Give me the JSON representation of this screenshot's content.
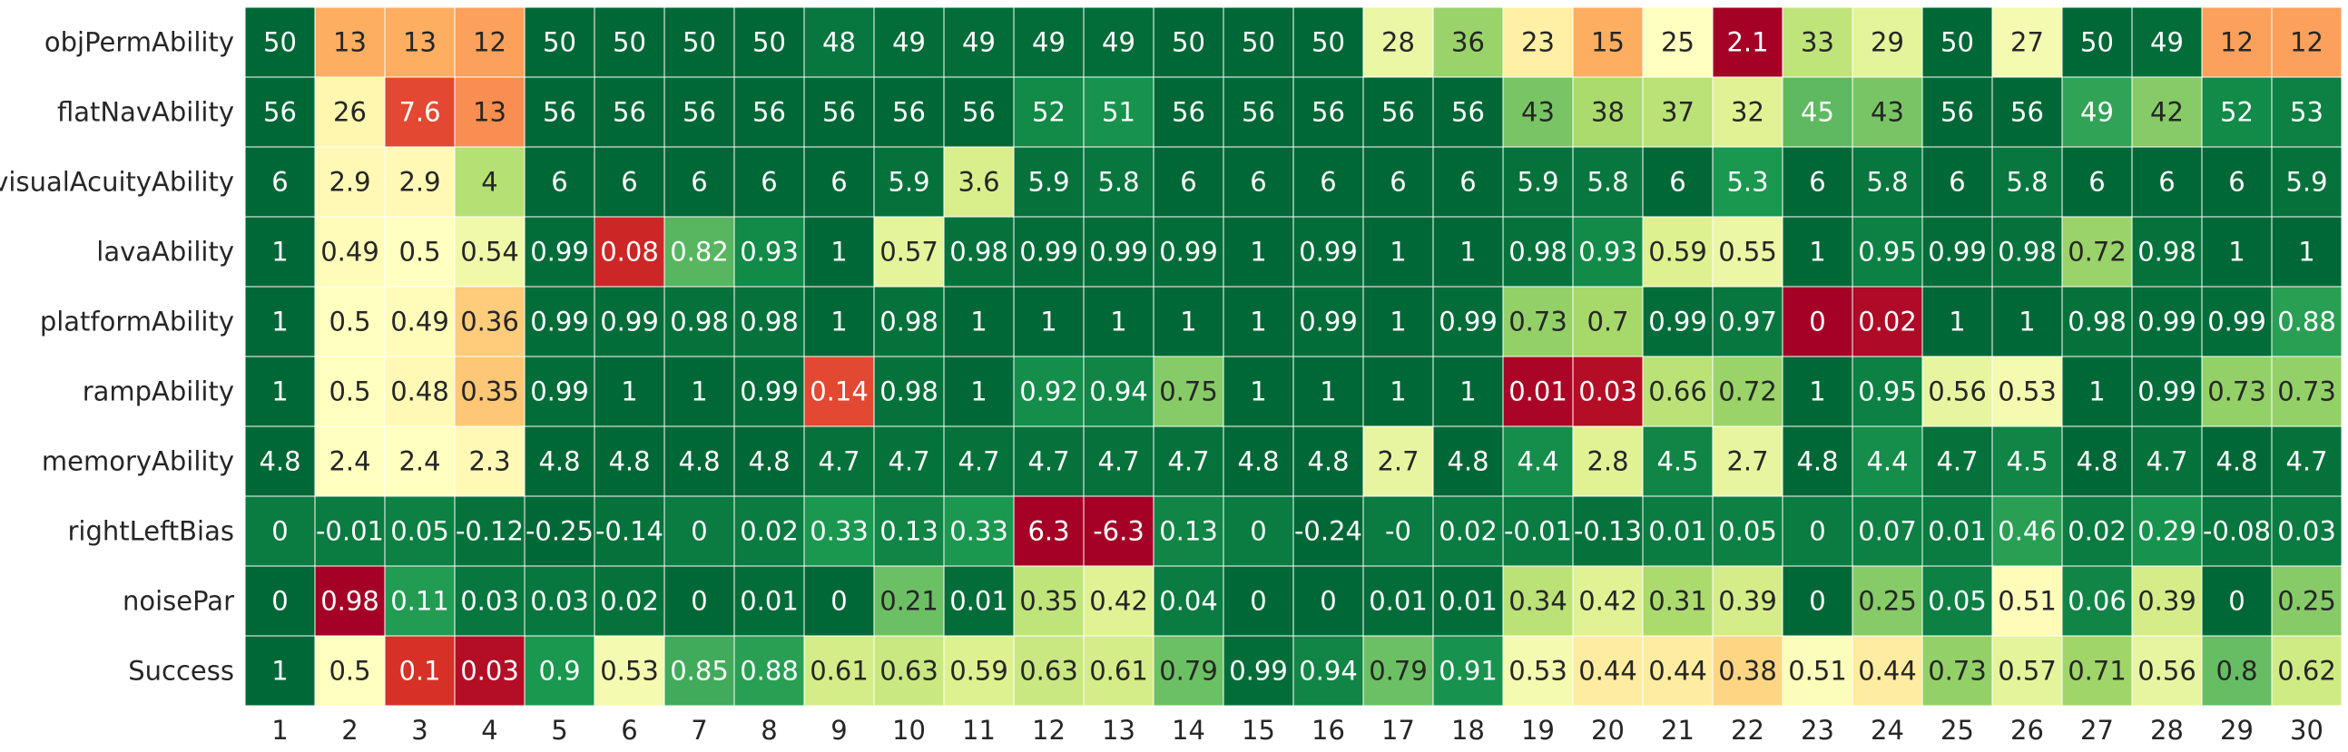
{
  "chart_data": {
    "type": "heatmap",
    "title": "",
    "xlabel": "",
    "ylabel": "",
    "colormap": "RdYlGn",
    "legend": "none",
    "grid": false,
    "rows": [
      "objPermAbility",
      "flatNavAbility",
      "visualAcuityAbility",
      "lavaAbility",
      "platformAbility",
      "rampAbility",
      "memoryAbility",
      "rightLeftBias",
      "noisePar",
      "Success"
    ],
    "columns": [
      "1",
      "2",
      "3",
      "4",
      "5",
      "6",
      "7",
      "8",
      "9",
      "10",
      "11",
      "12",
      "13",
      "14",
      "15",
      "16",
      "17",
      "18",
      "19",
      "20",
      "21",
      "22",
      "23",
      "24",
      "25",
      "26",
      "27",
      "28",
      "29",
      "30"
    ],
    "values": [
      [
        "50",
        "13",
        "13",
        "12",
        "50",
        "50",
        "50",
        "50",
        "48",
        "49",
        "49",
        "49",
        "49",
        "50",
        "50",
        "50",
        "28",
        "36",
        "23",
        "15",
        "25",
        "2.1",
        "33",
        "29",
        "50",
        "27",
        "50",
        "49",
        "12",
        "12"
      ],
      [
        "56",
        "26",
        "7.6",
        "13",
        "56",
        "56",
        "56",
        "56",
        "56",
        "56",
        "56",
        "52",
        "51",
        "56",
        "56",
        "56",
        "56",
        "56",
        "43",
        "38",
        "37",
        "32",
        "45",
        "43",
        "56",
        "56",
        "49",
        "42",
        "52",
        "53"
      ],
      [
        "6",
        "2.9",
        "2.9",
        "4",
        "6",
        "6",
        "6",
        "6",
        "6",
        "5.9",
        "3.6",
        "5.9",
        "5.8",
        "6",
        "6",
        "6",
        "6",
        "6",
        "5.9",
        "5.8",
        "6",
        "5.3",
        "6",
        "5.8",
        "6",
        "5.8",
        "6",
        "6",
        "6",
        "5.9"
      ],
      [
        "1",
        "0.49",
        "0.5",
        "0.54",
        "0.99",
        "0.08",
        "0.82",
        "0.93",
        "1",
        "0.57",
        "0.98",
        "0.99",
        "0.99",
        "0.99",
        "1",
        "0.99",
        "1",
        "1",
        "0.98",
        "0.93",
        "0.59",
        "0.55",
        "1",
        "0.95",
        "0.99",
        "0.98",
        "0.72",
        "0.98",
        "1",
        "1"
      ],
      [
        "1",
        "0.5",
        "0.49",
        "0.36",
        "0.99",
        "0.99",
        "0.98",
        "0.98",
        "1",
        "0.98",
        "1",
        "1",
        "1",
        "1",
        "1",
        "0.99",
        "1",
        "0.99",
        "0.73",
        "0.7",
        "0.99",
        "0.97",
        "0",
        "0.02",
        "1",
        "1",
        "0.98",
        "0.99",
        "0.99",
        "0.88"
      ],
      [
        "1",
        "0.5",
        "0.48",
        "0.35",
        "0.99",
        "1",
        "1",
        "0.99",
        "0.14",
        "0.98",
        "1",
        "0.92",
        "0.94",
        "0.75",
        "1",
        "1",
        "1",
        "1",
        "0.01",
        "0.03",
        "0.66",
        "0.72",
        "1",
        "0.95",
        "0.56",
        "0.53",
        "1",
        "0.99",
        "0.73",
        "0.73"
      ],
      [
        "4.8",
        "2.4",
        "2.4",
        "2.3",
        "4.8",
        "4.8",
        "4.8",
        "4.8",
        "4.7",
        "4.7",
        "4.7",
        "4.7",
        "4.7",
        "4.7",
        "4.8",
        "4.8",
        "2.7",
        "4.8",
        "4.4",
        "2.8",
        "4.5",
        "2.7",
        "4.8",
        "4.4",
        "4.7",
        "4.5",
        "4.8",
        "4.7",
        "4.8",
        "4.7"
      ],
      [
        "0",
        "-0.01",
        "0.05",
        "-0.12",
        "-0.25",
        "-0.14",
        "0",
        "0.02",
        "0.33",
        "0.13",
        "0.33",
        "6.3",
        "-6.3",
        "0.13",
        "0",
        "-0.24",
        "-0",
        "0.02",
        "-0.01",
        "-0.13",
        "0.01",
        "0.05",
        "0",
        "0.07",
        "0.01",
        "0.46",
        "0.02",
        "0.29",
        "-0.08",
        "0.03"
      ],
      [
        "0",
        "0.98",
        "0.11",
        "0.03",
        "0.03",
        "0.02",
        "0",
        "0.01",
        "0",
        "0.21",
        "0.01",
        "0.35",
        "0.42",
        "0.04",
        "0",
        "0",
        "0.01",
        "0.01",
        "0.34",
        "0.42",
        "0.31",
        "0.39",
        "0",
        "0.25",
        "0.05",
        "0.51",
        "0.06",
        "0.39",
        "0",
        "0.25"
      ],
      [
        "1",
        "0.5",
        "0.1",
        "0.03",
        "0.9",
        "0.53",
        "0.85",
        "0.88",
        "0.61",
        "0.63",
        "0.59",
        "0.63",
        "0.61",
        "0.79",
        "0.99",
        "0.94",
        "0.79",
        "0.91",
        "0.53",
        "0.44",
        "0.44",
        "0.38",
        "0.51",
        "0.44",
        "0.73",
        "0.57",
        "0.71",
        "0.56",
        "0.8",
        "0.62"
      ]
    ],
    "color_scores": [
      [
        1,
        0.3,
        0.3,
        0.28,
        1,
        1,
        1,
        1,
        0.97,
        0.99,
        0.99,
        0.99,
        0.99,
        1,
        1,
        1,
        0.55,
        0.72,
        0.45,
        0.3,
        0.5,
        0,
        0.65,
        0.57,
        1,
        0.53,
        1,
        0.99,
        0.28,
        0.28
      ],
      [
        1,
        0.47,
        0.14,
        0.25,
        1,
        1,
        1,
        1,
        1,
        1,
        1,
        0.93,
        0.91,
        1,
        1,
        1,
        1,
        1,
        0.77,
        0.69,
        0.66,
        0.58,
        0.81,
        0.77,
        1,
        1,
        0.87,
        0.75,
        0.93,
        0.95
      ],
      [
        1,
        0.48,
        0.48,
        0.67,
        1,
        1,
        1,
        1,
        1,
        0.98,
        0.6,
        0.98,
        0.97,
        1,
        1,
        1,
        1,
        1,
        0.98,
        0.97,
        1,
        0.9,
        1,
        0.97,
        1,
        0.97,
        1,
        1,
        1,
        0.98
      ],
      [
        1,
        0.49,
        0.5,
        0.54,
        0.99,
        0.08,
        0.82,
        0.93,
        1,
        0.57,
        0.98,
        0.99,
        0.99,
        0.99,
        1,
        0.99,
        1,
        1,
        0.98,
        0.93,
        0.59,
        0.55,
        1,
        0.95,
        0.99,
        0.98,
        0.72,
        0.98,
        1,
        1
      ],
      [
        1,
        0.5,
        0.49,
        0.36,
        0.99,
        0.99,
        0.98,
        0.98,
        1,
        0.98,
        1,
        1,
        1,
        1,
        1,
        0.99,
        1,
        0.99,
        0.73,
        0.7,
        0.99,
        0.97,
        0,
        0.02,
        1,
        1,
        0.98,
        0.99,
        0.99,
        0.88
      ],
      [
        1,
        0.5,
        0.48,
        0.35,
        0.99,
        1,
        1,
        0.99,
        0.14,
        0.98,
        1,
        0.92,
        0.94,
        0.75,
        1,
        1,
        1,
        1,
        0.01,
        0.03,
        0.66,
        0.72,
        1,
        0.95,
        0.56,
        0.53,
        1,
        0.99,
        0.73,
        0.73
      ],
      [
        1,
        0.5,
        0.5,
        0.48,
        1,
        1,
        1,
        1,
        0.98,
        0.98,
        0.98,
        0.98,
        0.98,
        0.98,
        1,
        1,
        0.56,
        1,
        0.92,
        0.58,
        0.94,
        0.56,
        1,
        0.92,
        0.98,
        0.94,
        1,
        0.98,
        1,
        0.98
      ],
      [
        0.96,
        0.96,
        0.95,
        0.98,
        1,
        0.98,
        0.96,
        0.96,
        0.9,
        0.94,
        0.9,
        0,
        0,
        0.94,
        0.96,
        1,
        0.96,
        0.96,
        0.96,
        0.98,
        0.96,
        0.95,
        0.96,
        0.95,
        0.96,
        0.88,
        0.96,
        0.91,
        0.97,
        0.96
      ],
      [
        1,
        0,
        0.89,
        0.97,
        0.97,
        0.98,
        1,
        0.99,
        1,
        0.79,
        0.99,
        0.65,
        0.58,
        0.96,
        1,
        1,
        0.99,
        0.99,
        0.66,
        0.58,
        0.69,
        0.61,
        1,
        0.75,
        0.95,
        0.49,
        0.94,
        0.61,
        1,
        0.75
      ],
      [
        1,
        0.5,
        0.1,
        0.03,
        0.9,
        0.53,
        0.85,
        0.88,
        0.61,
        0.63,
        0.59,
        0.63,
        0.61,
        0.79,
        0.99,
        0.94,
        0.79,
        0.91,
        0.53,
        0.44,
        0.44,
        0.38,
        0.51,
        0.44,
        0.73,
        0.57,
        0.71,
        0.56,
        0.8,
        0.62
      ]
    ]
  }
}
